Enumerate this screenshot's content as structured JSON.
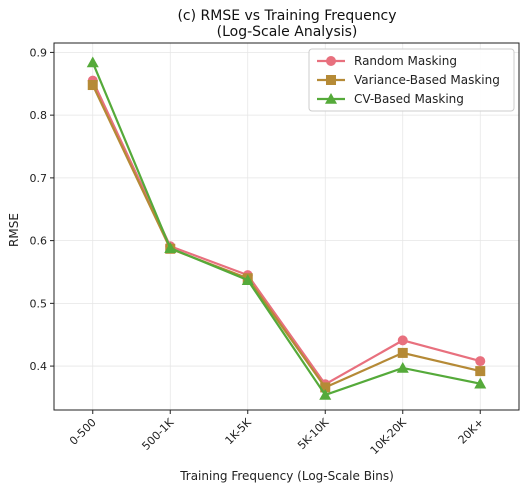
{
  "chart_data": {
    "type": "line",
    "title": [
      "(c) RMSE vs Training Frequency",
      "(Log-Scale Analysis)"
    ],
    "xlabel": "Training Frequency (Log-Scale Bins)",
    "ylabel": "RMSE",
    "categories": [
      "0-500",
      "500-1K",
      "1K-5K",
      "5K-10K",
      "10K-20K",
      "20K+"
    ],
    "ylim": [
      0.33,
      0.915
    ],
    "yticks": [
      0.4,
      0.5,
      0.6,
      0.7,
      0.8,
      0.9
    ],
    "grid": true,
    "legend_position": "top-right",
    "series": [
      {
        "name": "Random Masking",
        "marker": "circle",
        "color": "#e8707e",
        "values": [
          0.855,
          0.591,
          0.545,
          0.371,
          0.441,
          0.408
        ]
      },
      {
        "name": "Variance-Based Masking",
        "marker": "square",
        "color": "#b58a36",
        "values": [
          0.848,
          0.587,
          0.54,
          0.366,
          0.421,
          0.392
        ]
      },
      {
        "name": "CV-Based Masking",
        "marker": "triangle",
        "color": "#55aa3a",
        "values": [
          0.884,
          0.588,
          0.537,
          0.354,
          0.397,
          0.372
        ]
      }
    ]
  }
}
